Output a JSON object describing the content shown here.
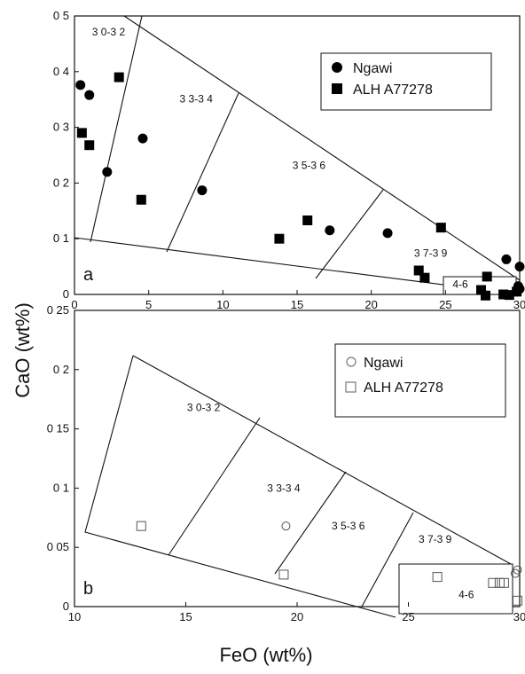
{
  "figure": {
    "ylabel": "CaO (wt%)",
    "xlabel": "FeO (wt%)"
  },
  "chart_data": [
    {
      "type": "scatter",
      "panel": "a",
      "xlim": [
        0,
        30
      ],
      "ylim": [
        0,
        0.5
      ],
      "x_ticks": [
        0,
        5,
        10,
        15,
        20,
        25,
        30
      ],
      "y_ticks": [
        0,
        0.1,
        0.2,
        0.3,
        0.4,
        0.5
      ],
      "x_tick_labels": [
        "0",
        "5",
        "10",
        "15",
        "20",
        "25",
        "30"
      ],
      "y_tick_labels": [
        "0",
        "0 1",
        "0 2",
        "0 3",
        "0 4",
        "0 5"
      ],
      "legend_position": "top-right",
      "series": [
        {
          "name": "Ngawi",
          "marker": "circle",
          "color": "#000000",
          "points": [
            [
              0.4,
              0.376
            ],
            [
              1.0,
              0.358
            ],
            [
              2.2,
              0.22
            ],
            [
              4.6,
              0.28
            ],
            [
              8.6,
              0.187
            ],
            [
              17.2,
              0.115
            ],
            [
              21.1,
              0.11
            ],
            [
              29.1,
              0.063
            ],
            [
              30.0,
              0.05
            ],
            [
              29.9,
              0.015
            ],
            [
              30.0,
              0.01
            ],
            [
              29.8,
              0.005
            ]
          ]
        },
        {
          "name": "ALH A77278",
          "marker": "square",
          "color": "#000000",
          "points": [
            [
              0.5,
              0.29
            ],
            [
              1.0,
              0.268
            ],
            [
              3.0,
              0.39
            ],
            [
              4.5,
              0.17
            ],
            [
              13.8,
              0.1
            ],
            [
              15.7,
              0.133
            ],
            [
              24.7,
              0.12
            ],
            [
              23.2,
              0.043
            ],
            [
              23.6,
              0.03
            ],
            [
              27.8,
              0.032
            ],
            [
              27.4,
              0.008
            ],
            [
              27.7,
              -0.002
            ],
            [
              28.9,
              0.0
            ],
            [
              29.3,
              -0.001
            ],
            [
              29.8,
              0.005
            ]
          ]
        }
      ],
      "region_labels": [
        {
          "text": "3 0-3 2",
          "x": 2.3,
          "y": 0.465
        },
        {
          "text": "3 3-3 4",
          "x": 8.2,
          "y": 0.345
        },
        {
          "text": "3 5-3 6",
          "x": 15.8,
          "y": 0.225
        },
        {
          "text": "3 7-3 9",
          "x": 24.0,
          "y": 0.068
        },
        {
          "text": "4-6",
          "x": 26.0,
          "y": 0.012
        }
      ],
      "outline": [
        [
          3.0,
          0.5
        ],
        [
          30.0,
          0.02
        ],
        [
          0.0,
          0.1
        ]
      ],
      "dividers": [
        [
          [
            3.0,
            0.5
          ],
          [
            12.0,
            0.46
          ]
        ],
        [
          [
            12.2,
            0.46
          ],
          [
            20.4,
            0.365
          ]
        ],
        [
          [
            20.6,
            0.36
          ],
          [
            26.8,
            0.18
          ]
        ],
        [
          [
            27.0,
            0.18
          ],
          [
            0,
            0
          ]
        ]
      ],
      "panel_letter": "a"
    },
    {
      "type": "scatter",
      "panel": "b",
      "xlim": [
        10,
        30
      ],
      "ylim": [
        0,
        0.25
      ],
      "x_ticks": [
        10,
        15,
        20,
        25,
        30
      ],
      "y_ticks": [
        0,
        0.05,
        0.1,
        0.15,
        0.2,
        0.25
      ],
      "x_tick_labels": [
        "10",
        "15",
        "20",
        "25",
        "30"
      ],
      "y_tick_labels": [
        "0",
        "0 05",
        "0 1",
        "0 15",
        "0 2",
        "0 25"
      ],
      "legend_position": "top-right",
      "series": [
        {
          "name": "Ngawi",
          "marker": "circle-open",
          "color": "#555555",
          "points": [
            [
              19.5,
              0.068
            ],
            [
              29.9,
              0.031
            ],
            [
              29.8,
              0.028
            ]
          ]
        },
        {
          "name": "ALH A77278",
          "marker": "square-open",
          "color": "#555555",
          "points": [
            [
              13.0,
              0.068
            ],
            [
              19.4,
              0.027
            ],
            [
              26.3,
              0.025
            ],
            [
              28.8,
              0.02
            ],
            [
              29.1,
              0.02
            ],
            [
              29.3,
              0.02
            ],
            [
              29.9,
              0.005
            ]
          ]
        }
      ],
      "region_labels": [
        {
          "text": "3 0-3 2",
          "x": 15.8,
          "y": 0.165
        },
        {
          "text": "3 3-3 4",
          "x": 19.4,
          "y": 0.097
        },
        {
          "text": "3 5-3 6",
          "x": 22.3,
          "y": 0.065
        },
        {
          "text": "3 7-3 9",
          "x": 26.2,
          "y": 0.054
        },
        {
          "text": "4-6",
          "x": 27.6,
          "y": 0.007
        }
      ],
      "panel_letter": "b"
    }
  ]
}
